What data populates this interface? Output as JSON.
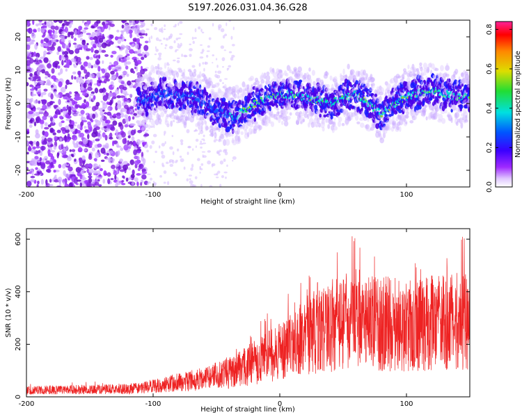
{
  "chart_data": [
    {
      "type": "heatmap",
      "title": "S197.2026.031.04.36.G28",
      "xlabel": "Height of straight line (km)",
      "ylabel": "Frequency (Hz)",
      "xlim": [
        -200,
        150
      ],
      "ylim": [
        -25,
        25
      ],
      "xticks": [
        -200,
        -100,
        0,
        100
      ],
      "yticks": [
        -20,
        -10,
        0,
        10,
        20
      ],
      "colorbar": {
        "label": "Normalized spectral amplitude",
        "range": [
          0.0,
          0.84
        ],
        "ticks": [
          "0.0",
          "0.2",
          "0.4",
          "0.6",
          "0.8"
        ]
      },
      "ridge": {
        "x": [
          -110,
          -90,
          -70,
          -50,
          -35,
          -20,
          0,
          20,
          40,
          60,
          80,
          100,
          120,
          140
        ],
        "y": [
          1,
          3,
          2,
          -2,
          -4,
          0,
          3,
          2,
          0,
          3,
          -3,
          2,
          4,
          2
        ]
      }
    },
    {
      "type": "line",
      "title": "",
      "xlabel": "Height of straight line (km)",
      "ylabel": "SNR (10 * v/v)",
      "xlim": [
        -200,
        150
      ],
      "ylim": [
        0,
        640
      ],
      "xticks": [
        -200,
        -100,
        0,
        100
      ],
      "yticks": [
        0,
        200,
        400,
        600
      ],
      "series": [
        {
          "name": "SNR",
          "color": "#ff2222",
          "envelope_x": [
            -200,
            -150,
            -120,
            -100,
            -80,
            -60,
            -40,
            -20,
            0,
            20,
            40,
            60,
            80,
            100,
            120,
            150
          ],
          "envelope_mean": [
            25,
            28,
            30,
            40,
            55,
            70,
            90,
            130,
            170,
            230,
            270,
            300,
            280,
            270,
            280,
            290
          ],
          "envelope_peak": [
            50,
            60,
            55,
            70,
            90,
            120,
            160,
            290,
            360,
            460,
            520,
            630,
            560,
            520,
            560,
            630
          ]
        }
      ]
    }
  ]
}
